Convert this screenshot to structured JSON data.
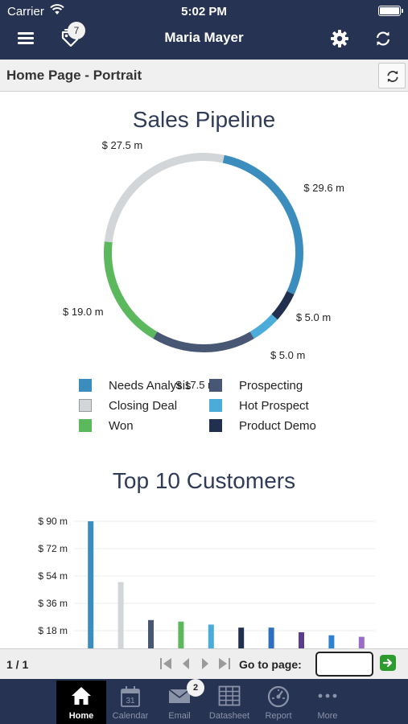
{
  "status_bar": {
    "carrier": "Carrier",
    "time": "5:02 PM"
  },
  "nav": {
    "title": "Maria Mayer",
    "tags_badge": "7",
    "icons": [
      "menu-icon",
      "tags-icon",
      "gear-icon",
      "sync-icon"
    ]
  },
  "page": {
    "title": "Home Page - Portrait"
  },
  "pipeline": {
    "title": "Sales Pipeline",
    "chart_data": {
      "type": "pie",
      "title": "Sales Pipeline",
      "unit": "$ m",
      "slices": [
        {
          "name": "Needs Analysis",
          "value": 29.6,
          "label": "$ 29.6 m",
          "color": "#3a8dbd"
        },
        {
          "name": "Product Demo",
          "value": 5.0,
          "label": "$ 5.0 m",
          "color": "#22304f"
        },
        {
          "name": "Hot Prospect",
          "value": 5.0,
          "label": "$ 5.0 m",
          "color": "#4cacd9"
        },
        {
          "name": "Prospecting",
          "value": 17.5,
          "label": "$ 17.5 m",
          "color": "#485774"
        },
        {
          "name": "Won",
          "value": 19.0,
          "label": "$ 19.0 m",
          "color": "#5cb85c"
        },
        {
          "name": "Closing Deal",
          "value": 27.5,
          "label": "$ 27.5 m",
          "color": "#d3d6d8"
        }
      ],
      "legend": [
        {
          "name": "Needs Analysis",
          "color": "#3a8dbd"
        },
        {
          "name": "Prospecting",
          "color": "#485774"
        },
        {
          "name": "Closing Deal",
          "color": "#d3d6d8"
        },
        {
          "name": "Hot Prospect",
          "color": "#4cacd9"
        },
        {
          "name": "Won",
          "color": "#5cb85c"
        },
        {
          "name": "Product Demo",
          "color": "#22304f"
        }
      ],
      "legend_position": "bottom"
    }
  },
  "customers": {
    "title": "Top 10 Customers",
    "chart_data": {
      "type": "bar",
      "title": "Top 10 Customers",
      "ylim": [
        0,
        90
      ],
      "yticks": [
        18,
        36,
        54,
        72,
        90
      ],
      "ytick_labels": [
        "$ 18 m",
        "$ 36 m",
        "$ 54 m",
        "$ 72 m",
        "$ 90 m"
      ],
      "grid": true,
      "values": [
        90,
        50,
        25,
        24,
        22,
        20,
        20,
        17,
        15,
        14
      ],
      "colors": [
        "#3a8dbd",
        "#d3d6d8",
        "#485774",
        "#5cb85c",
        "#4cacd9",
        "#22304f",
        "#2f6fc0",
        "#5a3e8c",
        "#2f82cf",
        "#9b6cc7"
      ]
    }
  },
  "pager": {
    "count": "1 / 1",
    "goto_label": "Go to page:",
    "goto_value": ""
  },
  "tabs": [
    {
      "label": "Home",
      "icon": "home-icon",
      "active": true
    },
    {
      "label": "Calendar",
      "icon": "calendar-icon",
      "active": false
    },
    {
      "label": "Email",
      "icon": "email-icon",
      "active": false,
      "badge": "2"
    },
    {
      "label": "Datasheet",
      "icon": "datasheet-icon",
      "active": false
    },
    {
      "label": "Report",
      "icon": "report-icon",
      "active": false
    },
    {
      "label": "More",
      "icon": "more-icon",
      "active": false
    }
  ],
  "calendar_day": "31"
}
